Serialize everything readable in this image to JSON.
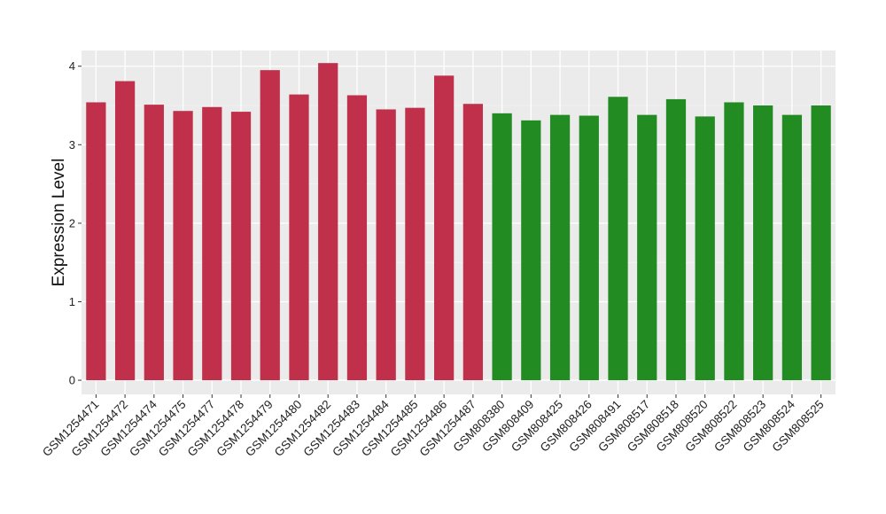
{
  "chart_data": {
    "type": "bar",
    "title": "",
    "xlabel": "",
    "ylabel": "Expression Level",
    "ylim": [
      -0.18,
      4.2
    ],
    "yticks": [
      0,
      1,
      2,
      3,
      4
    ],
    "grid": true,
    "legend": "none",
    "background_color": "#ebebeb",
    "categories": [
      "GSM1254471",
      "GSM1254472",
      "GSM1254474",
      "GSM1254475",
      "GSM1254477",
      "GSM1254478",
      "GSM1254479",
      "GSM1254480",
      "GSM1254482",
      "GSM1254483",
      "GSM1254484",
      "GSM1254485",
      "GSM1254486",
      "GSM1254487",
      "GSM808380",
      "GSM808409",
      "GSM808425",
      "GSM808426",
      "GSM808491",
      "GSM808517",
      "GSM808518",
      "GSM808520",
      "GSM808522",
      "GSM808523",
      "GSM808524",
      "GSM808525"
    ],
    "values": [
      3.54,
      3.81,
      3.51,
      3.43,
      3.48,
      3.42,
      3.95,
      3.64,
      4.04,
      3.63,
      3.45,
      3.47,
      3.88,
      3.52,
      3.4,
      3.31,
      3.38,
      3.37,
      3.61,
      3.38,
      3.58,
      3.36,
      3.54,
      3.5,
      3.38,
      3.5
    ],
    "bar_colors": [
      "#c0304a",
      "#c0304a",
      "#c0304a",
      "#c0304a",
      "#c0304a",
      "#c0304a",
      "#c0304a",
      "#c0304a",
      "#c0304a",
      "#c0304a",
      "#c0304a",
      "#c0304a",
      "#c0304a",
      "#c0304a",
      "#228b22",
      "#228b22",
      "#228b22",
      "#228b22",
      "#228b22",
      "#228b22",
      "#228b22",
      "#228b22",
      "#228b22",
      "#228b22",
      "#228b22",
      "#228b22"
    ]
  }
}
